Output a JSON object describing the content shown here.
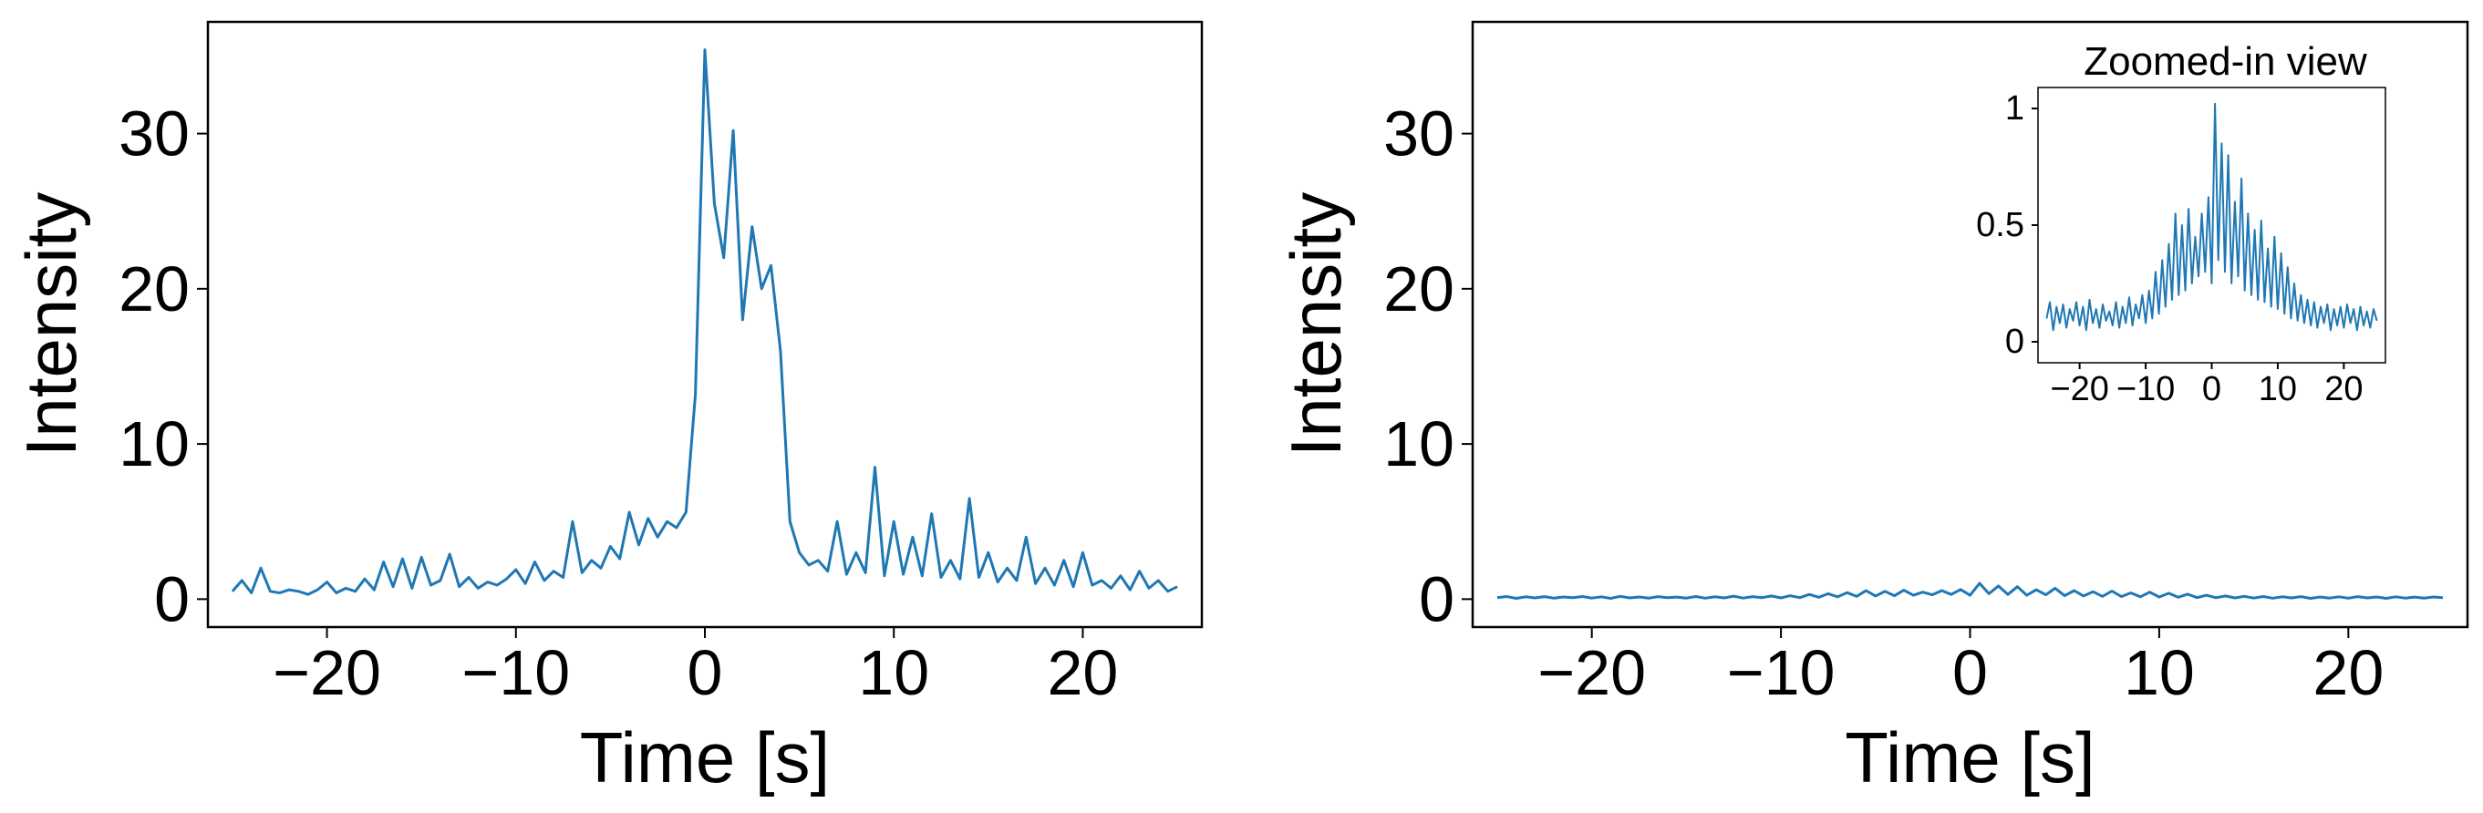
{
  "chart_data": [
    {
      "type": "line",
      "xlabel": "Time [s]",
      "ylabel": "Intensity",
      "x": [
        -25,
        -24.5,
        -24,
        -23.5,
        -23,
        -22.5,
        -22,
        -21.5,
        -21,
        -20.5,
        -20,
        -19.5,
        -19,
        -18.5,
        -18,
        -17.5,
        -17,
        -16.5,
        -16,
        -15.5,
        -15,
        -14.5,
        -14,
        -13.5,
        -13,
        -12.5,
        -12,
        -11.5,
        -11,
        -10.5,
        -10,
        -9.5,
        -9,
        -8.5,
        -8,
        -7.5,
        -7,
        -6.5,
        -6,
        -5.5,
        -5,
        -4.5,
        -4,
        -3.5,
        -3,
        -2.5,
        -2,
        -1.5,
        -1,
        -0.5,
        0,
        0.5,
        1,
        1.5,
        2,
        2.5,
        3,
        3.5,
        4,
        4.5,
        5,
        5.5,
        6,
        6.5,
        7,
        7.5,
        8,
        8.5,
        9,
        9.5,
        10,
        10.5,
        11,
        11.5,
        12,
        12.5,
        13,
        13.5,
        14,
        14.5,
        15,
        15.5,
        16,
        16.5,
        17,
        17.5,
        18,
        18.5,
        19,
        19.5,
        20,
        20.5,
        21,
        21.5,
        22,
        22.5,
        23,
        23.5,
        24,
        24.5,
        25
      ],
      "values": [
        0.5,
        1.2,
        0.4,
        2.0,
        0.5,
        0.4,
        0.6,
        0.5,
        0.3,
        0.6,
        1.1,
        0.4,
        0.7,
        0.5,
        1.3,
        0.6,
        2.4,
        0.8,
        2.6,
        0.7,
        2.7,
        0.9,
        1.2,
        2.9,
        0.8,
        1.4,
        0.7,
        1.1,
        0.9,
        1.3,
        1.9,
        1.0,
        2.4,
        1.2,
        1.8,
        1.4,
        5.0,
        1.7,
        2.5,
        2.0,
        3.4,
        2.6,
        5.6,
        3.5,
        5.2,
        4.0,
        5.0,
        4.6,
        5.6,
        13.2,
        35.4,
        25.5,
        22.0,
        30.2,
        18.0,
        24.0,
        20.0,
        21.5,
        16.0,
        5.0,
        3.0,
        2.2,
        2.5,
        1.8,
        5.0,
        1.6,
        3.0,
        1.7,
        8.5,
        1.5,
        5.0,
        1.6,
        4.0,
        1.5,
        5.5,
        1.4,
        2.5,
        1.3,
        6.5,
        1.4,
        3.0,
        1.1,
        2.0,
        1.2,
        4.0,
        1.0,
        2.0,
        0.9,
        2.5,
        0.8,
        3.0,
        0.9,
        1.2,
        0.7,
        1.5,
        0.6,
        1.8,
        0.7,
        1.2,
        0.5,
        0.8
      ],
      "color": "#1f77b4",
      "xlim": [
        -26.3,
        26.3
      ],
      "xticks": [
        {
          "value": -20,
          "label": "−20"
        },
        {
          "value": -10,
          "label": "−10"
        },
        0,
        10,
        20
      ],
      "ylim": [
        -1.8,
        37.2
      ],
      "yticks": [
        0,
        10,
        20,
        30
      ]
    },
    {
      "type": "line",
      "xlabel": "Time [s]",
      "ylabel": "Intensity",
      "x": [
        -25,
        -24.5,
        -24,
        -23.5,
        -23,
        -22.5,
        -22,
        -21.5,
        -21,
        -20.5,
        -20,
        -19.5,
        -19,
        -18.5,
        -18,
        -17.5,
        -17,
        -16.5,
        -16,
        -15.5,
        -15,
        -14.5,
        -14,
        -13.5,
        -13,
        -12.5,
        -12,
        -11.5,
        -11,
        -10.5,
        -10,
        -9.5,
        -9,
        -8.5,
        -8,
        -7.5,
        -7,
        -6.5,
        -6,
        -5.5,
        -5,
        -4.5,
        -4,
        -3.5,
        -3,
        -2.5,
        -2,
        -1.5,
        -1,
        -0.5,
        0,
        0.5,
        1,
        1.5,
        2,
        2.5,
        3,
        3.5,
        4,
        4.5,
        5,
        5.5,
        6,
        6.5,
        7,
        7.5,
        8,
        8.5,
        9,
        9.5,
        10,
        10.5,
        11,
        11.5,
        12,
        12.5,
        13,
        13.5,
        14,
        14.5,
        15,
        15.5,
        16,
        16.5,
        17,
        17.5,
        18,
        18.5,
        19,
        19.5,
        20,
        20.5,
        21,
        21.5,
        22,
        22.5,
        23,
        23.5,
        24,
        24.5,
        25
      ],
      "values": [
        0.1,
        0.17,
        0.05,
        0.15,
        0.08,
        0.16,
        0.06,
        0.14,
        0.09,
        0.17,
        0.07,
        0.15,
        0.05,
        0.18,
        0.08,
        0.14,
        0.06,
        0.16,
        0.09,
        0.13,
        0.07,
        0.17,
        0.06,
        0.15,
        0.08,
        0.19,
        0.07,
        0.16,
        0.1,
        0.2,
        0.08,
        0.22,
        0.1,
        0.3,
        0.12,
        0.35,
        0.15,
        0.42,
        0.18,
        0.55,
        0.2,
        0.5,
        0.22,
        0.57,
        0.25,
        0.45,
        0.28,
        0.55,
        0.3,
        0.62,
        0.25,
        1.02,
        0.35,
        0.85,
        0.3,
        0.8,
        0.25,
        0.6,
        0.28,
        0.7,
        0.22,
        0.55,
        0.2,
        0.48,
        0.18,
        0.52,
        0.17,
        0.4,
        0.15,
        0.45,
        0.14,
        0.38,
        0.12,
        0.32,
        0.1,
        0.25,
        0.09,
        0.2,
        0.08,
        0.18,
        0.07,
        0.17,
        0.06,
        0.15,
        0.08,
        0.16,
        0.05,
        0.14,
        0.07,
        0.15,
        0.06,
        0.16,
        0.08,
        0.14,
        0.05,
        0.15,
        0.07,
        0.13,
        0.06,
        0.14,
        0.09
      ],
      "color": "#1f77b4",
      "xlim": [
        -26.3,
        26.3
      ],
      "xticks": [
        {
          "value": -20,
          "label": "−20"
        },
        {
          "value": -10,
          "label": "−10"
        },
        0,
        10,
        20
      ],
      "ylim": [
        -1.8,
        37.2
      ],
      "yticks": [
        0,
        10,
        20,
        30
      ]
    },
    {
      "type": "line",
      "title": "Zoomed-in view",
      "x": [
        -25,
        -24.5,
        -24,
        -23.5,
        -23,
        -22.5,
        -22,
        -21.5,
        -21,
        -20.5,
        -20,
        -19.5,
        -19,
        -18.5,
        -18,
        -17.5,
        -17,
        -16.5,
        -16,
        -15.5,
        -15,
        -14.5,
        -14,
        -13.5,
        -13,
        -12.5,
        -12,
        -11.5,
        -11,
        -10.5,
        -10,
        -9.5,
        -9,
        -8.5,
        -8,
        -7.5,
        -7,
        -6.5,
        -6,
        -5.5,
        -5,
        -4.5,
        -4,
        -3.5,
        -3,
        -2.5,
        -2,
        -1.5,
        -1,
        -0.5,
        0,
        0.5,
        1,
        1.5,
        2,
        2.5,
        3,
        3.5,
        4,
        4.5,
        5,
        5.5,
        6,
        6.5,
        7,
        7.5,
        8,
        8.5,
        9,
        9.5,
        10,
        10.5,
        11,
        11.5,
        12,
        12.5,
        13,
        13.5,
        14,
        14.5,
        15,
        15.5,
        16,
        16.5,
        17,
        17.5,
        18,
        18.5,
        19,
        19.5,
        20,
        20.5,
        21,
        21.5,
        22,
        22.5,
        23,
        23.5,
        24,
        24.5,
        25
      ],
      "values": [
        0.1,
        0.17,
        0.05,
        0.15,
        0.08,
        0.16,
        0.06,
        0.14,
        0.09,
        0.17,
        0.07,
        0.15,
        0.05,
        0.18,
        0.08,
        0.14,
        0.06,
        0.16,
        0.09,
        0.13,
        0.07,
        0.17,
        0.06,
        0.15,
        0.08,
        0.19,
        0.07,
        0.16,
        0.1,
        0.2,
        0.08,
        0.22,
        0.1,
        0.3,
        0.12,
        0.35,
        0.15,
        0.42,
        0.18,
        0.55,
        0.2,
        0.5,
        0.22,
        0.57,
        0.25,
        0.45,
        0.28,
        0.55,
        0.3,
        0.62,
        0.25,
        1.02,
        0.35,
        0.85,
        0.3,
        0.8,
        0.25,
        0.6,
        0.28,
        0.7,
        0.22,
        0.55,
        0.2,
        0.48,
        0.18,
        0.52,
        0.17,
        0.4,
        0.15,
        0.45,
        0.14,
        0.38,
        0.12,
        0.32,
        0.1,
        0.25,
        0.09,
        0.2,
        0.08,
        0.18,
        0.07,
        0.17,
        0.06,
        0.15,
        0.08,
        0.16,
        0.05,
        0.14,
        0.07,
        0.15,
        0.06,
        0.16,
        0.08,
        0.14,
        0.05,
        0.15,
        0.07,
        0.13,
        0.06,
        0.14,
        0.09
      ],
      "color": "#1f77b4",
      "xlim": [
        -26.3,
        26.3
      ],
      "xticks": [
        {
          "value": -20,
          "label": "−20"
        },
        {
          "value": -10,
          "label": "−10"
        },
        0,
        10,
        20
      ],
      "ylim": [
        -0.09,
        1.09
      ],
      "yticks": [
        0,
        0.5,
        1
      ]
    }
  ]
}
